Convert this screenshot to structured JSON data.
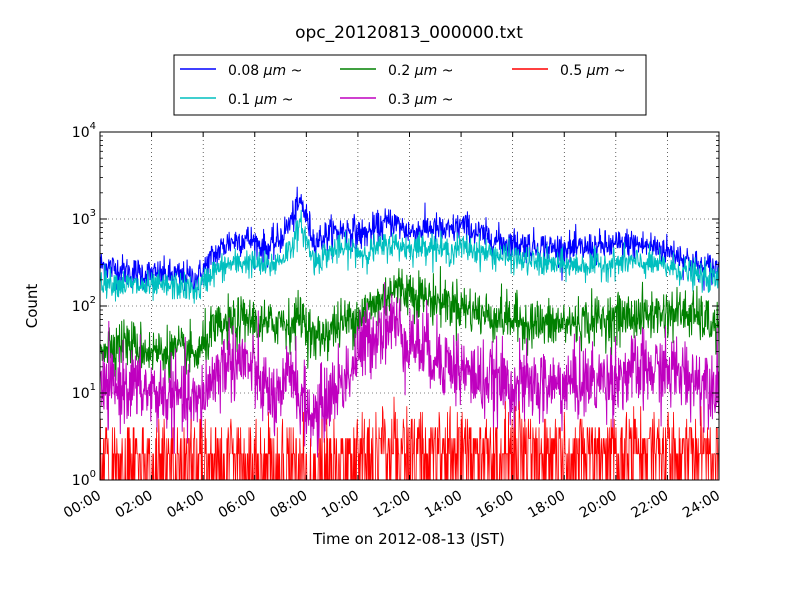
{
  "chart_data": {
    "type": "line",
    "title": "opc_20120813_000000.txt",
    "xlabel": "Time on 2012-08-13 (JST)",
    "ylabel": "Count",
    "scale_y": "log",
    "ylim": [
      1,
      10000
    ],
    "xlim_hours": [
      0,
      24
    ],
    "grid": true,
    "legend_position": "top-center-outside",
    "x_ticks": [
      "00:00",
      "02:00",
      "04:00",
      "06:00",
      "08:00",
      "10:00",
      "12:00",
      "14:00",
      "16:00",
      "18:00",
      "20:00",
      "22:00",
      "24:00"
    ],
    "y_ticks": [
      {
        "base": "10",
        "exp": "0"
      },
      {
        "base": "10",
        "exp": "1"
      },
      {
        "base": "10",
        "exp": "2"
      },
      {
        "base": "10",
        "exp": "3"
      },
      {
        "base": "10",
        "exp": "4"
      }
    ],
    "x_hours": [
      0,
      1,
      2,
      3,
      3.8,
      4.3,
      5,
      5.7,
      6.5,
      7,
      7.4,
      7.8,
      8.3,
      9,
      9.7,
      10.2,
      10.8,
      11.3,
      12,
      12.8,
      13.5,
      14,
      14.8,
      15.5,
      16.5,
      17.5,
      18.5,
      19.5,
      20.5,
      21.5,
      22.5,
      23.2,
      24
    ],
    "series": [
      {
        "name": "0.08 μm ~",
        "label_main": "0.08 ",
        "label_unit": "μm",
        "label_tail": " ~",
        "color": "#0000ff",
        "noise": 0.09,
        "values": [
          300,
          250,
          230,
          220,
          210,
          350,
          550,
          600,
          450,
          600,
          950,
          1600,
          550,
          700,
          750,
          650,
          800,
          950,
          700,
          800,
          700,
          850,
          650,
          550,
          500,
          460,
          450,
          480,
          520,
          480,
          380,
          280,
          270
        ]
      },
      {
        "name": "0.1 μm ~",
        "label_main": "0.1 ",
        "label_unit": "μm",
        "label_tail": " ~",
        "color": "#00bfbf",
        "noise": 0.08,
        "values": [
          200,
          175,
          165,
          170,
          150,
          240,
          300,
          320,
          280,
          340,
          480,
          850,
          320,
          430,
          450,
          400,
          460,
          520,
          460,
          500,
          420,
          480,
          420,
          380,
          330,
          300,
          290,
          300,
          320,
          300,
          260,
          220,
          200
        ]
      },
      {
        "name": "0.2 μm ~",
        "label_main": "0.2 ",
        "label_unit": "μm",
        "label_tail": " ~",
        "color": "#008000",
        "noise": 0.14,
        "values": [
          35,
          38,
          30,
          30,
          27,
          50,
          60,
          70,
          58,
          70,
          60,
          80,
          40,
          55,
          70,
          85,
          110,
          160,
          150,
          120,
          110,
          100,
          80,
          75,
          65,
          60,
          65,
          70,
          75,
          80,
          85,
          75,
          55
        ]
      },
      {
        "name": "0.3 μm ~",
        "label_main": "0.3 ",
        "label_unit": "μm",
        "label_tail": " ~",
        "color": "#bf00bf",
        "noise": 0.22,
        "values": [
          10,
          13,
          10,
          9,
          7,
          14,
          25,
          22,
          10,
          7,
          22,
          8,
          5,
          10,
          18,
          35,
          55,
          65,
          40,
          30,
          22,
          18,
          14,
          13,
          12,
          12,
          13,
          14,
          17,
          18,
          17,
          14,
          14
        ]
      },
      {
        "name": "0.5 μm ~",
        "label_main": "0.5 ",
        "label_unit": "μm",
        "label_tail": " ~",
        "color": "#ff0000",
        "noise": 0.0,
        "values": [
          1.7,
          1.7,
          1.6,
          1.6,
          1.5,
          1.8,
          1.9,
          1.8,
          1.6,
          1.4,
          1.5,
          1.4,
          1.3,
          1.4,
          1.6,
          2.0,
          2.6,
          2.6,
          2.5,
          2.6,
          2.6,
          2.5,
          2.4,
          2.4,
          2.3,
          2.3,
          2.3,
          2.3,
          2.4,
          2.4,
          2.3,
          2.3,
          2.3
        ]
      }
    ]
  }
}
